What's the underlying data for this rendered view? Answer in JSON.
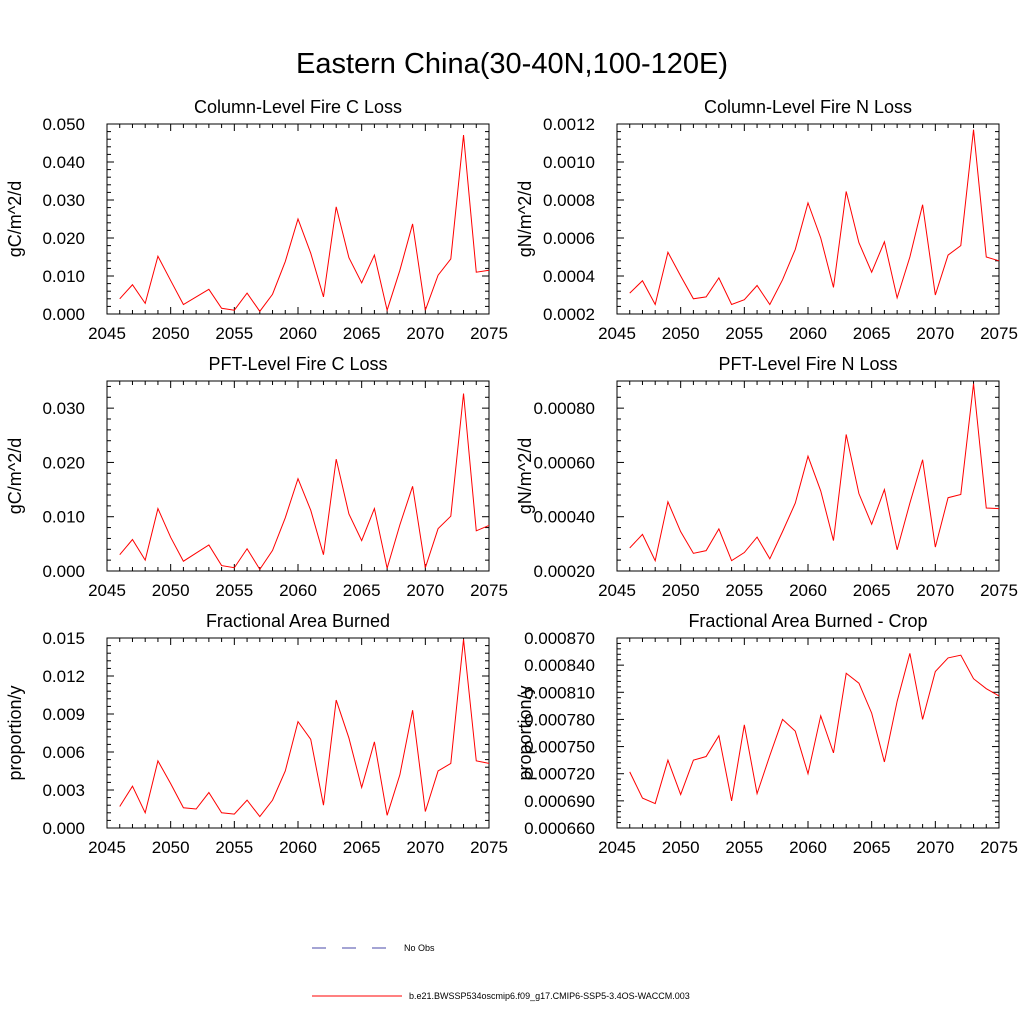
{
  "figure": {
    "title": "Eastern China(30-40N,100-120E)"
  },
  "legend": {
    "items": [
      {
        "label": "No Obs",
        "color": "#4a4aa8",
        "style": "dashed"
      },
      {
        "label": "b.e21.BWSSP534oscmip6.f09_g17.CMIP6-SSP5-3.4OS-WACCM.003",
        "color": "#ff0000",
        "style": "solid"
      }
    ]
  },
  "chart_data": [
    {
      "type": "line",
      "title": "Column-Level Fire C Loss",
      "ylabel": "gC/m^2/d",
      "xlim": [
        2045,
        2075
      ],
      "ylim": [
        0,
        0.05
      ],
      "xticks": [
        2045,
        2050,
        2055,
        2060,
        2065,
        2070,
        2075
      ],
      "yticks": [
        "0.000",
        "0.010",
        "0.020",
        "0.030",
        "0.040",
        "0.050"
      ],
      "ytick_values": [
        0,
        0.01,
        0.02,
        0.03,
        0.04,
        0.05
      ],
      "x": [
        2046,
        2047,
        2048,
        2049,
        2050,
        2051,
        2052,
        2053,
        2054,
        2055,
        2056,
        2057,
        2058,
        2059,
        2060,
        2061,
        2062,
        2063,
        2064,
        2065,
        2066,
        2067,
        2068,
        2069,
        2070,
        2071,
        2072,
        2073,
        2074,
        2075
      ],
      "series": [
        {
          "name": "b.e21.BWSSP534oscmip6.f09_g17.CMIP6-SSP5-3.4OS-WACCM.003",
          "color": "#ff0000",
          "values": [
            0.004,
            0.0077,
            0.0028,
            0.0152,
            0.0088,
            0.0025,
            0.0045,
            0.0065,
            0.0015,
            0.001,
            0.0055,
            0.0007,
            0.0052,
            0.0138,
            0.025,
            0.016,
            0.0045,
            0.0282,
            0.0148,
            0.0082,
            0.0155,
            0.001,
            0.0115,
            0.0237,
            0.001,
            0.0102,
            0.0145,
            0.0471,
            0.011,
            0.0115
          ]
        }
      ]
    },
    {
      "type": "line",
      "title": "Column-Level Fire N Loss",
      "ylabel": "gN/m^2/d",
      "xlim": [
        2045,
        2075
      ],
      "ylim": [
        0.0002,
        0.0012
      ],
      "xticks": [
        2045,
        2050,
        2055,
        2060,
        2065,
        2070,
        2075
      ],
      "yticks": [
        "0.0002",
        "0.0004",
        "0.0006",
        "0.0008",
        "0.0010",
        "0.0012"
      ],
      "ytick_values": [
        0.0002,
        0.0004,
        0.0006,
        0.0008,
        0.001,
        0.0012
      ],
      "x": [
        2046,
        2047,
        2048,
        2049,
        2050,
        2051,
        2052,
        2053,
        2054,
        2055,
        2056,
        2057,
        2058,
        2059,
        2060,
        2061,
        2062,
        2063,
        2064,
        2065,
        2066,
        2067,
        2068,
        2069,
        2070,
        2071,
        2072,
        2073,
        2074,
        2075
      ],
      "series": [
        {
          "name": "b.e21.BWSSP534oscmip6.f09_g17.CMIP6-SSP5-3.4OS-WACCM.003",
          "color": "#ff0000",
          "values": [
            0.00031,
            0.000375,
            0.00025,
            0.000525,
            0.0004,
            0.00028,
            0.00029,
            0.00039,
            0.00025,
            0.000275,
            0.00035,
            0.00025,
            0.00038,
            0.00054,
            0.000785,
            0.0006,
            0.00034,
            0.000845,
            0.000575,
            0.00042,
            0.00058,
            0.000285,
            0.0005,
            0.000775,
            0.0003,
            0.00051,
            0.00056,
            0.00117,
            0.0005,
            0.00048
          ]
        }
      ]
    },
    {
      "type": "line",
      "title": "PFT-Level Fire C Loss",
      "ylabel": "gC/m^2/d",
      "xlim": [
        2045,
        2075
      ],
      "ylim": [
        0,
        0.035
      ],
      "xticks": [
        2045,
        2050,
        2055,
        2060,
        2065,
        2070,
        2075
      ],
      "yticks": [
        "0.000",
        "0.010",
        "0.020",
        "0.030"
      ],
      "ytick_values": [
        0,
        0.01,
        0.02,
        0.03
      ],
      "x": [
        2046,
        2047,
        2048,
        2049,
        2050,
        2051,
        2052,
        2053,
        2054,
        2055,
        2056,
        2057,
        2058,
        2059,
        2060,
        2061,
        2062,
        2063,
        2064,
        2065,
        2066,
        2067,
        2068,
        2069,
        2070,
        2071,
        2072,
        2073,
        2074,
        2075
      ],
      "series": [
        {
          "name": "b.e21.BWSSP534oscmip6.f09_g17.CMIP6-SSP5-3.4OS-WACCM.003",
          "color": "#ff0000",
          "values": [
            0.003,
            0.0058,
            0.002,
            0.0115,
            0.0062,
            0.0018,
            0.0033,
            0.0048,
            0.001,
            0.0006,
            0.0041,
            0.0003,
            0.0038,
            0.0098,
            0.017,
            0.0112,
            0.003,
            0.0206,
            0.0105,
            0.0056,
            0.0115,
            0.0005,
            0.0085,
            0.0156,
            0.0006,
            0.0078,
            0.0101,
            0.0327,
            0.0074,
            0.0084
          ]
        }
      ]
    },
    {
      "type": "line",
      "title": "PFT-Level Fire N Loss",
      "ylabel": "gN/m^2/d",
      "xlim": [
        2045,
        2075
      ],
      "ylim": [
        0.0002,
        0.0009
      ],
      "xticks": [
        2045,
        2050,
        2055,
        2060,
        2065,
        2070,
        2075
      ],
      "yticks": [
        "0.00020",
        "0.00040",
        "0.00060",
        "0.00080"
      ],
      "ytick_values": [
        0.0002,
        0.0004,
        0.0006,
        0.0008
      ],
      "x": [
        2046,
        2047,
        2048,
        2049,
        2050,
        2051,
        2052,
        2053,
        2054,
        2055,
        2056,
        2057,
        2058,
        2059,
        2060,
        2061,
        2062,
        2063,
        2064,
        2065,
        2066,
        2067,
        2068,
        2069,
        2070,
        2071,
        2072,
        2073,
        2074,
        2075
      ],
      "series": [
        {
          "name": "b.e21.BWSSP534oscmip6.f09_g17.CMIP6-SSP5-3.4OS-WACCM.003",
          "color": "#ff0000",
          "values": [
            0.000285,
            0.000335,
            0.000238,
            0.000455,
            0.000345,
            0.000265,
            0.000275,
            0.000355,
            0.000238,
            0.000268,
            0.000325,
            0.000245,
            0.000345,
            0.00045,
            0.000623,
            0.000495,
            0.000312,
            0.000703,
            0.000485,
            0.000372,
            0.0005,
            0.000278,
            0.00045,
            0.00061,
            0.000288,
            0.00047,
            0.000482,
            0.00089,
            0.000432,
            0.00043
          ]
        }
      ]
    },
    {
      "type": "line",
      "title": "Fractional Area Burned",
      "ylabel": "proportion/y",
      "xlim": [
        2045,
        2075
      ],
      "ylim": [
        0,
        0.015
      ],
      "xticks": [
        2045,
        2050,
        2055,
        2060,
        2065,
        2070,
        2075
      ],
      "yticks": [
        "0.000",
        "0.003",
        "0.006",
        "0.009",
        "0.012",
        "0.015"
      ],
      "ytick_values": [
        0,
        0.003,
        0.006,
        0.009,
        0.012,
        0.015
      ],
      "x": [
        2046,
        2047,
        2048,
        2049,
        2050,
        2051,
        2052,
        2053,
        2054,
        2055,
        2056,
        2057,
        2058,
        2059,
        2060,
        2061,
        2062,
        2063,
        2064,
        2065,
        2066,
        2067,
        2068,
        2069,
        2070,
        2071,
        2072,
        2073,
        2074,
        2075
      ],
      "series": [
        {
          "name": "b.e21.BWSSP534oscmip6.f09_g17.CMIP6-SSP5-3.4OS-WACCM.003",
          "color": "#ff0000",
          "values": [
            0.0017,
            0.0033,
            0.0012,
            0.0053,
            0.0035,
            0.0016,
            0.0015,
            0.0028,
            0.0012,
            0.0011,
            0.0022,
            0.0009,
            0.0022,
            0.0045,
            0.0084,
            0.007,
            0.0018,
            0.0101,
            0.0071,
            0.0032,
            0.0068,
            0.001,
            0.0042,
            0.0093,
            0.0013,
            0.0045,
            0.0051,
            0.0149,
            0.0053,
            0.0051
          ]
        }
      ]
    },
    {
      "type": "line",
      "title": "Fractional Area Burned - Crop",
      "ylabel": "proportion/y",
      "xlim": [
        2045,
        2075
      ],
      "ylim": [
        0.00066,
        0.00087
      ],
      "xticks": [
        2045,
        2050,
        2055,
        2060,
        2065,
        2070,
        2075
      ],
      "yticks": [
        "0.000660",
        "0.000690",
        "0.000720",
        "0.000750",
        "0.000780",
        "0.000810",
        "0.000840",
        "0.000870"
      ],
      "ytick_values": [
        0.00066,
        0.00069,
        0.00072,
        0.00075,
        0.00078,
        0.00081,
        0.00084,
        0.00087
      ],
      "x": [
        2046,
        2047,
        2048,
        2049,
        2050,
        2051,
        2052,
        2053,
        2054,
        2055,
        2056,
        2057,
        2058,
        2059,
        2060,
        2061,
        2062,
        2063,
        2064,
        2065,
        2066,
        2067,
        2068,
        2069,
        2070,
        2071,
        2072,
        2073,
        2074,
        2075
      ],
      "series": [
        {
          "name": "b.e21.BWSSP534oscmip6.f09_g17.CMIP6-SSP5-3.4OS-WACCM.003",
          "color": "#ff0000",
          "values": [
            0.000722,
            0.000693,
            0.000687,
            0.000735,
            0.000697,
            0.000735,
            0.000739,
            0.000762,
            0.00069,
            0.000774,
            0.000698,
            0.00074,
            0.00078,
            0.000767,
            0.00072,
            0.000784,
            0.000743,
            0.000831,
            0.00082,
            0.000787,
            0.000733,
            0.0008,
            0.000853,
            0.00078,
            0.000833,
            0.000848,
            0.000851,
            0.000825,
            0.000814,
            0.000806
          ]
        }
      ]
    }
  ]
}
